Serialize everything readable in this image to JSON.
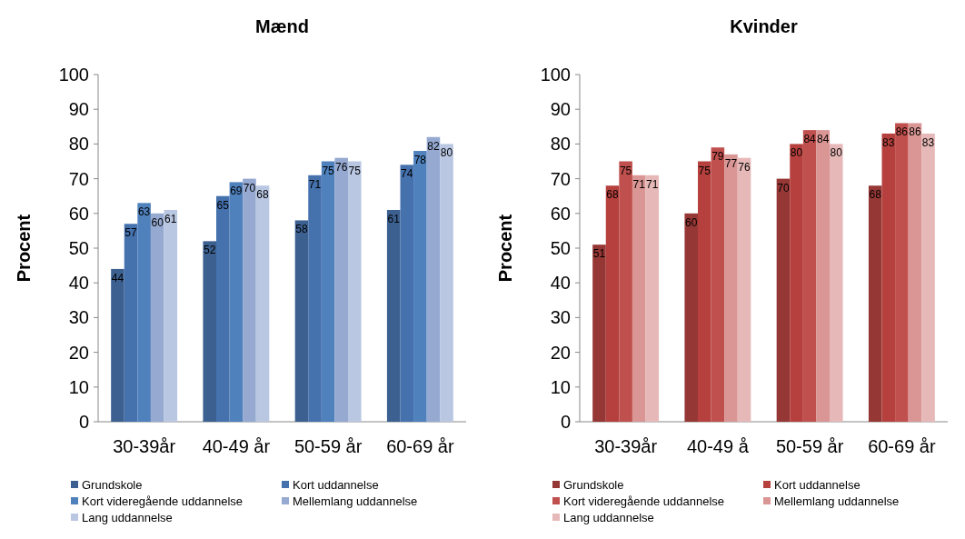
{
  "chart_data": [
    {
      "type": "bar",
      "title": "Mænd",
      "ylabel": "Procent",
      "categories": [
        "30-39år",
        "40-49 år",
        "50-59 år",
        "60-69 år"
      ],
      "ylim": [
        0,
        100
      ],
      "yticks": [
        0,
        10,
        20,
        30,
        40,
        50,
        60,
        70,
        80,
        90,
        100
      ],
      "data_labels": true,
      "legend": "bottom",
      "series": [
        {
          "name": "Grundskole",
          "color": "#3c6090",
          "values": [
            44,
            52,
            58,
            61
          ]
        },
        {
          "name": "Kort uddannelse",
          "color": "#4571ad",
          "values": [
            57,
            65,
            71,
            74
          ]
        },
        {
          "name": "Kort videregående uddannelse",
          "color": "#4f81bd",
          "values": [
            63,
            69,
            75,
            78
          ]
        },
        {
          "name": "Mellemlang uddannelse",
          "color": "#95a9d1",
          "values": [
            60,
            70,
            76,
            82
          ]
        },
        {
          "name": "Lang uddannelse",
          "color": "#b9c7e2",
          "values": [
            61,
            68,
            75,
            80
          ]
        }
      ]
    },
    {
      "type": "bar",
      "title": "Kvinder",
      "ylabel": "Procent",
      "categories": [
        "30-39år",
        "40-49 å",
        "50-59 år",
        "60-69 år"
      ],
      "ylim": [
        0,
        100
      ],
      "yticks": [
        0,
        10,
        20,
        30,
        40,
        50,
        60,
        70,
        80,
        90,
        100
      ],
      "data_labels": true,
      "legend": "bottom",
      "series": [
        {
          "name": "Grundskole",
          "color": "#953735",
          "values": [
            51,
            60,
            70,
            68
          ]
        },
        {
          "name": "Kort uddannelse",
          "color": "#b5403d",
          "values": [
            68,
            75,
            80,
            83
          ]
        },
        {
          "name": "Kort videregående uddannelse",
          "color": "#c0504d",
          "values": [
            75,
            79,
            84,
            86
          ]
        },
        {
          "name": "Mellemlang uddannelse",
          "color": "#d99694",
          "values": [
            71,
            77,
            84,
            86
          ]
        },
        {
          "name": "Lang uddannelse",
          "color": "#e6b9b8",
          "values": [
            71,
            76,
            80,
            83
          ]
        }
      ]
    }
  ]
}
